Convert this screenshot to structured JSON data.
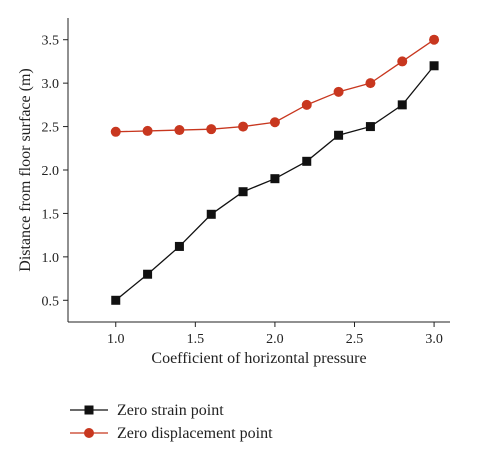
{
  "chart_data": {
    "type": "line",
    "xlabel": "Coefficient of horizontal pressure",
    "ylabel": "Distance from floor surface (m)",
    "xlim": [
      0.7,
      3.1
    ],
    "ylim": [
      0.25,
      3.75
    ],
    "x_ticks": [
      1.0,
      1.5,
      2.0,
      2.5,
      3.0
    ],
    "x_tick_labels": [
      "1.0",
      "1.5",
      "2.0",
      "2.5",
      "3.0"
    ],
    "y_ticks": [
      0.5,
      1.0,
      1.5,
      2.0,
      2.5,
      3.0,
      3.5
    ],
    "y_tick_labels": [
      "0.5",
      "1.0",
      "1.5",
      "2.0",
      "2.5",
      "3.0",
      "3.5"
    ],
    "grid": false,
    "legend_position": "bottom",
    "x": [
      1.0,
      1.2,
      1.4,
      1.6,
      1.8,
      2.0,
      2.2,
      2.4,
      2.6,
      2.8,
      3.0
    ],
    "series": [
      {
        "name": "Zero strain point",
        "color": "#111111",
        "marker": "square",
        "values": [
          0.5,
          0.8,
          1.12,
          1.49,
          1.75,
          1.9,
          2.1,
          2.4,
          2.5,
          2.75,
          3.2
        ]
      },
      {
        "name": "Zero displacement point",
        "color": "#c8371f",
        "marker": "circle",
        "values": [
          2.44,
          2.45,
          2.46,
          2.47,
          2.5,
          2.55,
          2.75,
          2.9,
          3.0,
          3.25,
          3.5
        ]
      }
    ]
  }
}
